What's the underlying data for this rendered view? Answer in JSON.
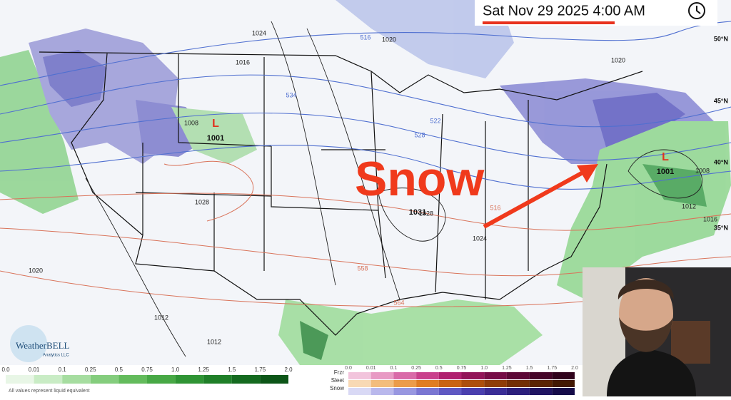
{
  "header": {
    "timestamp": "Sat Nov 29 2025 4:00 AM"
  },
  "annotation": {
    "text": "Snow"
  },
  "pressure_centers": [
    {
      "symbol": "L",
      "value": "1001"
    },
    {
      "symbol": "L",
      "value": "1001"
    },
    {
      "value": "1031"
    }
  ],
  "contour_labels": [
    "1024",
    "1020",
    "1016",
    "1020",
    "516",
    "534",
    "522",
    "528",
    "1008",
    "1028",
    "1028",
    "1024",
    "516",
    "558",
    "564",
    "1020",
    "1012",
    "1012",
    "1016",
    "1008",
    "1012"
  ],
  "latitude_labels": [
    "50°N",
    "45°N",
    "40°N",
    "35°N"
  ],
  "rain_legend": {
    "ticks": [
      "0.0",
      "0.01",
      "0.1",
      "0.25",
      "0.5",
      "0.75",
      "1.0",
      "1.25",
      "1.5",
      "1.75",
      "2.0"
    ],
    "note": "All values represent liquid equivalent"
  },
  "ptype_legend": {
    "types": [
      "Frzr",
      "Sleet",
      "Snow"
    ],
    "ticks": [
      "0.0",
      "0.01",
      "0.1",
      "0.25",
      "0.5",
      "0.75",
      "1.0",
      "1.25",
      "1.5",
      "1.75",
      "2.0"
    ]
  },
  "logo": {
    "name": "WeatherBELL",
    "sub": "Analytics LLC"
  }
}
